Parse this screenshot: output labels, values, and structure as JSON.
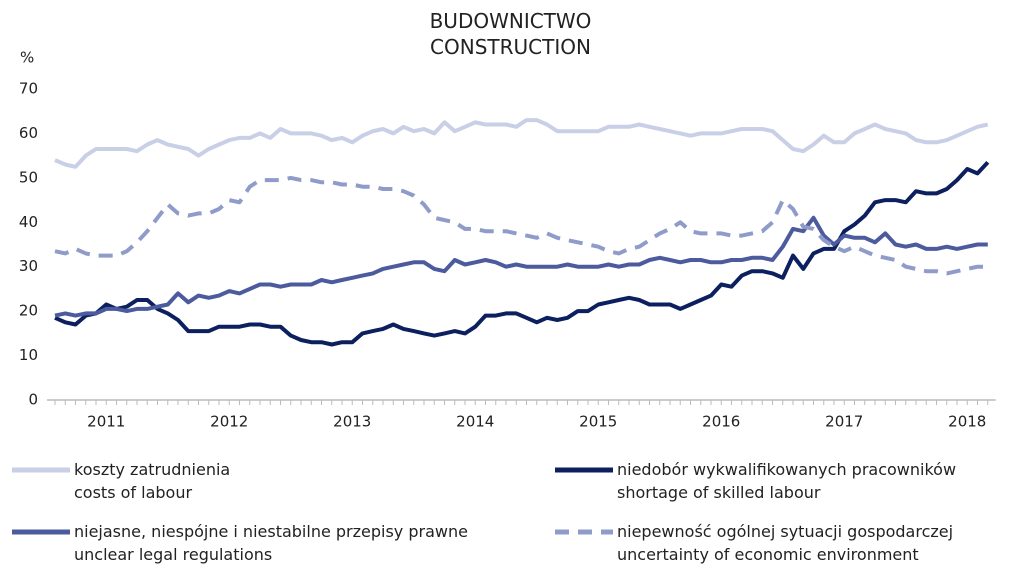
{
  "chart_data": {
    "type": "line",
    "title": "BUDOWNICTWO\nCONSTRUCTION",
    "y_label": "%",
    "categories": [
      null,
      null,
      null,
      null,
      null,
      "2011",
      null,
      null,
      null,
      null,
      null,
      null,
      null,
      null,
      null,
      null,
      null,
      "2012",
      null,
      null,
      null,
      null,
      null,
      null,
      null,
      null,
      null,
      null,
      null,
      "2013",
      null,
      null,
      null,
      null,
      null,
      null,
      null,
      null,
      null,
      null,
      null,
      "2014",
      null,
      null,
      null,
      null,
      null,
      null,
      null,
      null,
      null,
      null,
      null,
      "2015",
      null,
      null,
      null,
      null,
      null,
      null,
      null,
      null,
      null,
      null,
      null,
      "2016",
      null,
      null,
      null,
      null,
      null,
      null,
      null,
      null,
      null,
      null,
      null,
      "2017",
      null,
      null,
      null,
      null,
      null,
      null,
      null,
      null,
      null,
      null,
      null,
      "2018",
      null,
      null
    ],
    "ylim": [
      0,
      70
    ],
    "yticks": [
      0,
      10,
      20,
      30,
      40,
      50,
      60,
      70
    ],
    "series": [
      {
        "name": "koszty zatrudnienia\ncosts of labour",
        "color": "#c9cfe6",
        "dash": false,
        "values": [
          54,
          53,
          52.5,
          55,
          56.5,
          56.5,
          56.5,
          56.5,
          56,
          57.5,
          58.5,
          57.5,
          57,
          56.5,
          55,
          56.5,
          57.5,
          58.5,
          59,
          59,
          60,
          59,
          61,
          60,
          60,
          60,
          59.5,
          58.5,
          59,
          58,
          59.5,
          60.5,
          61,
          60,
          61.5,
          60.5,
          61,
          60,
          62.5,
          60.5,
          61.5,
          62.5,
          62,
          62,
          62,
          61.5,
          63,
          63,
          62,
          60.5,
          60.5,
          60.5,
          60.5,
          60.5,
          61.5,
          61.5,
          61.5,
          62,
          61.5,
          61,
          60.5,
          60,
          59.5,
          60,
          60,
          60,
          60.5,
          61,
          61,
          61,
          60.5,
          58.5,
          56.5,
          56,
          57.5,
          59.5,
          58,
          58,
          60,
          61,
          62,
          61,
          60.5,
          60,
          58.5,
          58,
          58,
          58.5,
          59.5,
          60.5,
          61.5,
          62
        ]
      },
      {
        "name": "niedobór wykwalifikowanych pracowników\nshortage of skilled labour",
        "color": "#0c1f5e",
        "dash": false,
        "values": [
          18.5,
          17.5,
          17,
          19,
          19.5,
          21.5,
          20.5,
          21,
          22.5,
          22.5,
          20.5,
          19.5,
          18,
          15.5,
          15.5,
          15.5,
          16.5,
          16.5,
          16.5,
          17,
          17,
          16.5,
          16.5,
          14.5,
          13.5,
          13,
          13,
          12.5,
          13,
          13,
          15,
          15.5,
          16,
          17,
          16,
          15.5,
          15,
          14.5,
          15,
          15.5,
          15,
          16.5,
          19,
          19,
          19.5,
          19.5,
          18.5,
          17.5,
          18.5,
          18,
          18.5,
          20,
          20,
          21.5,
          22,
          22.5,
          23,
          22.5,
          21.5,
          21.5,
          21.5,
          20.5,
          21.5,
          22.5,
          23.5,
          26,
          25.5,
          28,
          29,
          29,
          28.5,
          27.5,
          32.5,
          29.5,
          33,
          34,
          34,
          38,
          39.5,
          41.5,
          44.5,
          45,
          45,
          44.5,
          47,
          46.5,
          46.5,
          47.5,
          49.5,
          52,
          51,
          53.5
        ]
      },
      {
        "name": "niejasne, niespójne i niestabilne przepisy prawne\nunclear legal regulations",
        "color": "#4b5b9e",
        "dash": false,
        "values": [
          19,
          19.5,
          19,
          19.5,
          19.5,
          20.5,
          20.5,
          20,
          20.5,
          20.5,
          21,
          21.5,
          24,
          22,
          23.5,
          23,
          23.5,
          24.5,
          24,
          25,
          26,
          26,
          25.5,
          26,
          26,
          26,
          27,
          26.5,
          27,
          27.5,
          28,
          28.5,
          29.5,
          30,
          30.5,
          31,
          31,
          29.5,
          29,
          31.5,
          30.5,
          31,
          31.5,
          31,
          30,
          30.5,
          30,
          30,
          30,
          30,
          30.5,
          30,
          30,
          30,
          30.5,
          30,
          30.5,
          30.5,
          31.5,
          32,
          31.5,
          31,
          31.5,
          31.5,
          31,
          31,
          31.5,
          31.5,
          32,
          32,
          31.5,
          34.5,
          38.5,
          38,
          41,
          37,
          35,
          37,
          36.5,
          36.5,
          35.5,
          37.5,
          35,
          34.5,
          35,
          34,
          34,
          34.5,
          34,
          34.5,
          35,
          35
        ]
      },
      {
        "name": "niepewność ogólnej sytuacji gospodarczej\nuncertainty of economic environment",
        "color": "#8f9bc9",
        "dash": true,
        "values": [
          33.5,
          33,
          34,
          33,
          32.5,
          32.5,
          32.5,
          33.5,
          35.5,
          38,
          41,
          44,
          42,
          41.5,
          42,
          42,
          43,
          45,
          44.5,
          48,
          49.5,
          49.5,
          49.5,
          50,
          49.5,
          49.5,
          49,
          49,
          48.5,
          48.5,
          48,
          48,
          47.5,
          47.5,
          47,
          46,
          44,
          41,
          40.5,
          40,
          38.5,
          38.5,
          38,
          38,
          38,
          37.5,
          37,
          36.5,
          37.5,
          36.5,
          36,
          35.5,
          35,
          34.5,
          33.5,
          33,
          34,
          34.5,
          36,
          37.5,
          38.5,
          40,
          38,
          37.5,
          37.5,
          37.5,
          37,
          37,
          37.5,
          38,
          40,
          45,
          43,
          39,
          38.5,
          36,
          34.5,
          33.5,
          34.5,
          33.5,
          32.5,
          32,
          31.5,
          30,
          29.5,
          29,
          29,
          28.5,
          29,
          29.5,
          30,
          30
        ]
      }
    ]
  }
}
